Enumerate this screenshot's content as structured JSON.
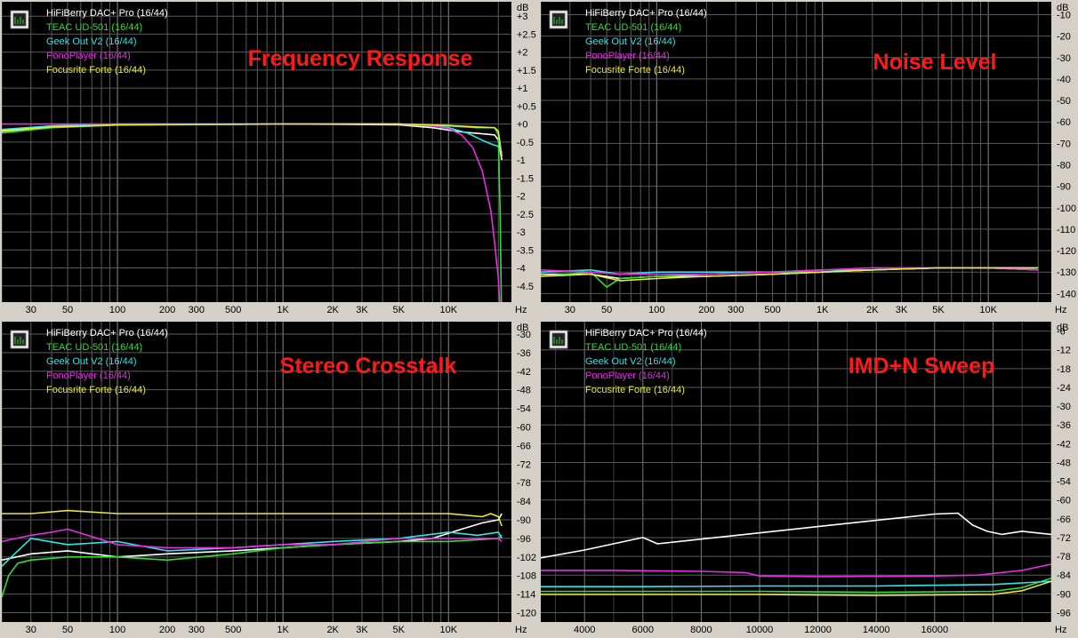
{
  "colors": {
    "hifiberry": "#ffffff",
    "teac": "#33dd33",
    "geek": "#2ee6e6",
    "pono": "#e62ee6",
    "focusrite": "#e8e83a",
    "title": "#ff1a1a",
    "grid": "#5a5a5a",
    "plot_bg": "#000000"
  },
  "legend_icon": "spectrum-analyzer-icon",
  "chart_data": [
    {
      "type": "line",
      "title": "Frequency Response",
      "x_scale": "log",
      "x_unit": "Hz",
      "y_unit": "dB",
      "xlim": [
        20,
        24000
      ],
      "ylim": [
        -4.95,
        3.4
      ],
      "x_ticks": [
        30,
        50,
        100,
        200,
        300,
        500,
        1000,
        2000,
        3000,
        5000,
        10000
      ],
      "x_tick_labels": [
        "30",
        "50",
        "100",
        "200",
        "300",
        "500",
        "1K",
        "2K",
        "3K",
        "5K",
        "10K"
      ],
      "y_ticks": [
        3,
        2.5,
        2,
        1.5,
        1,
        0.5,
        0,
        -0.5,
        -1,
        -1.5,
        -2,
        -2.5,
        -3,
        -3.5,
        -4,
        -4.5
      ],
      "y_tick_labels": [
        "+3",
        "+2.5",
        "+2",
        "+1.5",
        "+1",
        "+0.5",
        "+0",
        "-0.5",
        "-1",
        "-1.5",
        "-2",
        "-2.5",
        "-3",
        "-3.5",
        "-4",
        "-4.5"
      ],
      "grid": true,
      "legend": "top-left",
      "series": [
        {
          "name": "HiFiBerry DAC+ Pro (16/44)",
          "color": "#ffffff",
          "x": [
            20,
            40,
            100,
            1000,
            5000,
            8000,
            12000,
            16000,
            19000,
            20000,
            21000
          ],
          "y": [
            -0.2,
            -0.08,
            -0.02,
            0,
            -0.02,
            -0.1,
            -0.22,
            -0.27,
            -0.3,
            -0.45,
            -1.0
          ]
        },
        {
          "name": "TEAC UD-501 (16/44)",
          "color": "#33dd33",
          "x": [
            20,
            40,
            100,
            1000,
            5000,
            10000,
            15000,
            19000,
            20000,
            20500,
            21000
          ],
          "y": [
            -0.25,
            -0.1,
            -0.03,
            0,
            0,
            -0.05,
            -0.1,
            -0.1,
            -0.3,
            -2.5,
            -6.0
          ]
        },
        {
          "name": "Geek Out V2 (16/44)",
          "color": "#2ee6e6",
          "x": [
            20,
            40,
            100,
            1000,
            5000,
            8000,
            10000,
            13000,
            16000,
            18000,
            20000,
            21000
          ],
          "y": [
            -0.15,
            -0.05,
            0,
            0,
            0,
            -0.05,
            -0.1,
            -0.25,
            -0.45,
            -0.55,
            -0.62,
            -0.8
          ]
        },
        {
          "name": "PonoPlayer (16/44)",
          "color": "#e62ee6",
          "x": [
            20,
            100,
            1000,
            5000,
            8000,
            10000,
            12000,
            14000,
            16000,
            18000,
            19000,
            20000,
            21000
          ],
          "y": [
            0,
            0,
            0,
            0,
            -0.05,
            -0.12,
            -0.3,
            -0.65,
            -1.3,
            -2.4,
            -3.3,
            -4.3,
            -6.0
          ]
        },
        {
          "name": "Focusrite Forte (16/44)",
          "color": "#e8e83a",
          "x": [
            20,
            40,
            100,
            1000,
            5000,
            10000,
            15000,
            19000,
            20000,
            21000
          ],
          "y": [
            -0.18,
            -0.08,
            -0.02,
            0,
            0,
            -0.04,
            -0.08,
            -0.1,
            -0.2,
            -0.9
          ]
        }
      ]
    },
    {
      "type": "line",
      "title": "Noise Level",
      "x_scale": "log",
      "x_unit": "Hz",
      "y_unit": "dB",
      "xlim": [
        20,
        24000
      ],
      "ylim": [
        -144,
        -4
      ],
      "x_ticks": [
        30,
        50,
        100,
        200,
        300,
        500,
        1000,
        2000,
        3000,
        5000,
        10000
      ],
      "x_tick_labels": [
        "30",
        "50",
        "100",
        "200",
        "300",
        "500",
        "1K",
        "2K",
        "3K",
        "5K",
        "10K"
      ],
      "y_ticks": [
        -10,
        -20,
        -30,
        -40,
        -50,
        -60,
        -70,
        -80,
        -90,
        -100,
        -110,
        -120,
        -130,
        -140
      ],
      "y_tick_labels": [
        "-10",
        "-20",
        "-30",
        "-40",
        "-50",
        "-60",
        "-70",
        "-80",
        "-90",
        "-100",
        "-110",
        "-120",
        "-130",
        "-140"
      ],
      "grid": true,
      "legend": "top-left",
      "series": [
        {
          "name": "HiFiBerry DAC+ Pro (16/44)",
          "color": "#ffffff",
          "x": [
            20,
            40,
            60,
            100,
            200,
            500,
            1000,
            2000,
            5000,
            10000,
            20000
          ],
          "y": [
            -131,
            -131,
            -133,
            -132,
            -132,
            -131,
            -130,
            -129,
            -128,
            -128,
            -129
          ]
        },
        {
          "name": "TEAC UD-501 (16/44)",
          "color": "#33dd33",
          "x": [
            20,
            40,
            50,
            60,
            100,
            200,
            500,
            1000,
            2000,
            5000,
            10000,
            20000
          ],
          "y": [
            -132,
            -130,
            -137,
            -133,
            -132,
            -131,
            -130,
            -130,
            -129,
            -128,
            -128,
            -128
          ]
        },
        {
          "name": "Geek Out V2 (16/44)",
          "color": "#2ee6e6",
          "x": [
            20,
            40,
            60,
            100,
            200,
            500,
            1000,
            2000,
            5000,
            10000,
            20000
          ],
          "y": [
            -130,
            -129,
            -131,
            -130,
            -130,
            -130,
            -129,
            -129,
            -128,
            -128,
            -128
          ]
        },
        {
          "name": "PonoPlayer (16/44)",
          "color": "#e62ee6",
          "x": [
            20,
            40,
            60,
            100,
            200,
            500,
            1000,
            2000,
            5000,
            10000,
            20000
          ],
          "y": [
            -129,
            -130,
            -131,
            -131,
            -131,
            -130,
            -129,
            -128,
            -128,
            -128,
            -129
          ]
        },
        {
          "name": "Focusrite Forte (16/44)",
          "color": "#e8e83a",
          "x": [
            20,
            40,
            60,
            100,
            200,
            500,
            1000,
            2000,
            5000,
            10000,
            20000
          ],
          "y": [
            -132,
            -131,
            -134,
            -133,
            -132,
            -131,
            -130,
            -129,
            -128,
            -128,
            -128
          ]
        }
      ]
    },
    {
      "type": "line",
      "title": "Stereo Crosstalk",
      "x_scale": "log",
      "x_unit": "Hz",
      "y_unit": "dB",
      "xlim": [
        20,
        24000
      ],
      "ylim": [
        -123,
        -26
      ],
      "x_ticks": [
        30,
        50,
        100,
        200,
        300,
        500,
        1000,
        2000,
        3000,
        5000,
        10000
      ],
      "x_tick_labels": [
        "30",
        "50",
        "100",
        "200",
        "300",
        "500",
        "1K",
        "2K",
        "3K",
        "5K",
        "10K"
      ],
      "y_ticks": [
        -30,
        -36,
        -42,
        -48,
        -54,
        -60,
        -66,
        -72,
        -78,
        -84,
        -90,
        -96,
        -102,
        -108,
        -114,
        -120
      ],
      "y_tick_labels": [
        "-30",
        "-36",
        "-42",
        "-48",
        "-54",
        "-60",
        "-66",
        "-72",
        "-78",
        "-84",
        "-90",
        "-96",
        "-102",
        "-108",
        "-114",
        "-120"
      ],
      "grid": true,
      "legend": "top-left",
      "series": [
        {
          "name": "HiFiBerry DAC+ Pro (16/44)",
          "color": "#ffffff",
          "x": [
            20,
            30,
            50,
            100,
            200,
            500,
            1000,
            2000,
            5000,
            8000,
            12000,
            16000,
            20000,
            21000
          ],
          "y": [
            -103,
            -101,
            -100,
            -102,
            -101,
            -100,
            -99,
            -98,
            -97,
            -96,
            -93,
            -91,
            -90,
            -88
          ]
        },
        {
          "name": "TEAC UD-501 (16/44)",
          "color": "#33dd33",
          "x": [
            20,
            22,
            25,
            30,
            50,
            100,
            200,
            500,
            1000,
            2000,
            5000,
            10000,
            20000,
            21000
          ],
          "y": [
            -115,
            -108,
            -104,
            -103,
            -102,
            -102,
            -103,
            -101,
            -99,
            -98,
            -97,
            -97,
            -96,
            -95
          ]
        },
        {
          "name": "Geek Out V2 (16/44)",
          "color": "#2ee6e6",
          "x": [
            20,
            25,
            30,
            50,
            100,
            200,
            500,
            1000,
            2000,
            5000,
            10000,
            15000,
            20000,
            21000
          ],
          "y": [
            -105,
            -100,
            -96,
            -98,
            -97,
            -100,
            -99,
            -98,
            -97,
            -96,
            -94,
            -95,
            -94,
            -96
          ]
        },
        {
          "name": "PonoPlayer (16/44)",
          "color": "#e62ee6",
          "x": [
            20,
            30,
            40,
            50,
            100,
            200,
            500,
            1000,
            2000,
            5000,
            10000,
            20000,
            21000
          ],
          "y": [
            -97,
            -95,
            -94,
            -93,
            -98,
            -99,
            -99,
            -98,
            -98,
            -96,
            -96,
            -96,
            -97
          ]
        },
        {
          "name": "Focusrite Forte (16/44)",
          "color": "#e8e83a",
          "x": [
            20,
            30,
            50,
            100,
            200,
            500,
            1000,
            2000,
            5000,
            10000,
            16000,
            18000,
            20000,
            21000
          ],
          "y": [
            -88,
            -88,
            -87,
            -88,
            -88,
            -88,
            -88,
            -88,
            -88,
            -88,
            -89,
            -88,
            -89,
            -92
          ]
        }
      ]
    },
    {
      "type": "line",
      "title": "IMD+N Sweep",
      "x_scale": "linear",
      "x_unit": "Hz",
      "y_unit": "dB",
      "xlim": [
        2500,
        20000
      ],
      "ylim": [
        -99,
        -3
      ],
      "x_ticks": [
        4000,
        6000,
        8000,
        10000,
        12000,
        14000,
        16000
      ],
      "x_tick_labels": [
        "4000",
        "6000",
        "8000",
        "10000",
        "12000",
        "14000",
        "16000"
      ],
      "y_ticks": [
        -6,
        -12,
        -18,
        -24,
        -30,
        -36,
        -42,
        -48,
        -54,
        -60,
        -66,
        -72,
        -78,
        -84,
        -90,
        -96
      ],
      "y_tick_labels": [
        "-6",
        "-12",
        "-18",
        "-24",
        "-30",
        "-36",
        "-42",
        "-48",
        "-54",
        "-60",
        "-66",
        "-72",
        "-78",
        "-84",
        "-90",
        "-96"
      ],
      "grid": true,
      "legend": "top-left",
      "series": [
        {
          "name": "HiFiBerry DAC+ Pro (16/44)",
          "color": "#ffffff",
          "x": [
            2500,
            4000,
            6000,
            6500,
            8000,
            10000,
            12000,
            14000,
            16000,
            16800,
            17300,
            17800,
            18300,
            19000,
            20000
          ],
          "y": [
            -78.5,
            -76,
            -72,
            -74,
            -72.5,
            -70.5,
            -68.5,
            -66.5,
            -64.5,
            -64.2,
            -68,
            -70,
            -71,
            -70,
            -71
          ]
        },
        {
          "name": "TEAC UD-501 (16/44)",
          "color": "#33dd33",
          "x": [
            2500,
            6000,
            10000,
            14000,
            18000,
            19000,
            20000
          ],
          "y": [
            -89.2,
            -89.2,
            -89.2,
            -89.5,
            -89.2,
            -88,
            -85
          ]
        },
        {
          "name": "Geek Out V2 (16/44)",
          "color": "#2ee6e6",
          "x": [
            2500,
            6000,
            10000,
            14000,
            18000,
            19000,
            20000
          ],
          "y": [
            -87.7,
            -87.7,
            -87.5,
            -87.5,
            -87,
            -86.5,
            -86
          ]
        },
        {
          "name": "PonoPlayer (16/44)",
          "color": "#e62ee6",
          "x": [
            2500,
            5000,
            8000,
            9500,
            10000,
            12000,
            14000,
            16000,
            17500,
            19000,
            20000
          ],
          "y": [
            -82.5,
            -82.5,
            -82.8,
            -83.2,
            -84.3,
            -84.5,
            -84.4,
            -84.3,
            -84,
            -82.5,
            -80.5
          ]
        },
        {
          "name": "Focusrite Forte (16/44)",
          "color": "#e8e83a",
          "x": [
            2500,
            6000,
            10000,
            14000,
            18000,
            19000,
            20000
          ],
          "y": [
            -90.2,
            -90.2,
            -90.2,
            -90.5,
            -90.2,
            -89,
            -86
          ]
        }
      ]
    }
  ]
}
